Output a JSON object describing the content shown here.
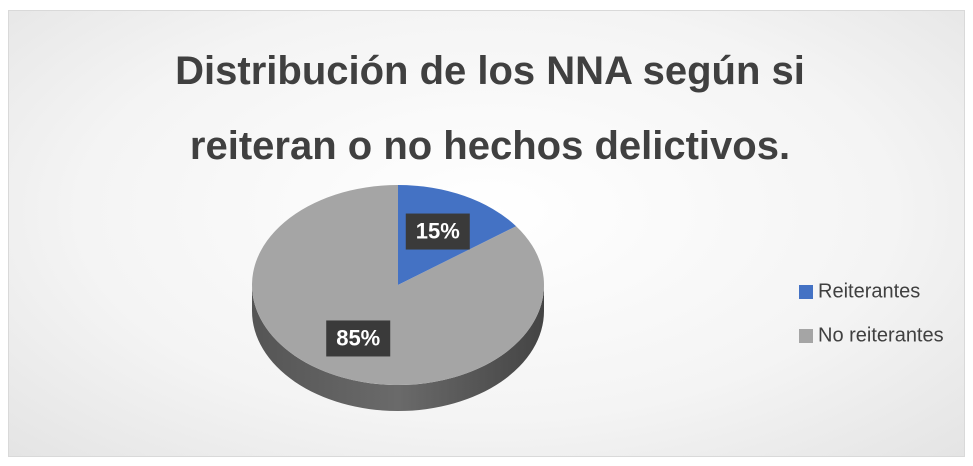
{
  "chart_data": {
    "type": "pie",
    "title": "Distribución de los NNA según si reiteran o no hechos delictivos.",
    "categories": [
      "Reiterantes",
      "No reiterantes"
    ],
    "values": [
      15,
      85
    ],
    "value_labels": [
      "15%",
      "85%"
    ],
    "colors": [
      "#4472c4",
      "#a5a5a5"
    ],
    "legend": "right"
  }
}
